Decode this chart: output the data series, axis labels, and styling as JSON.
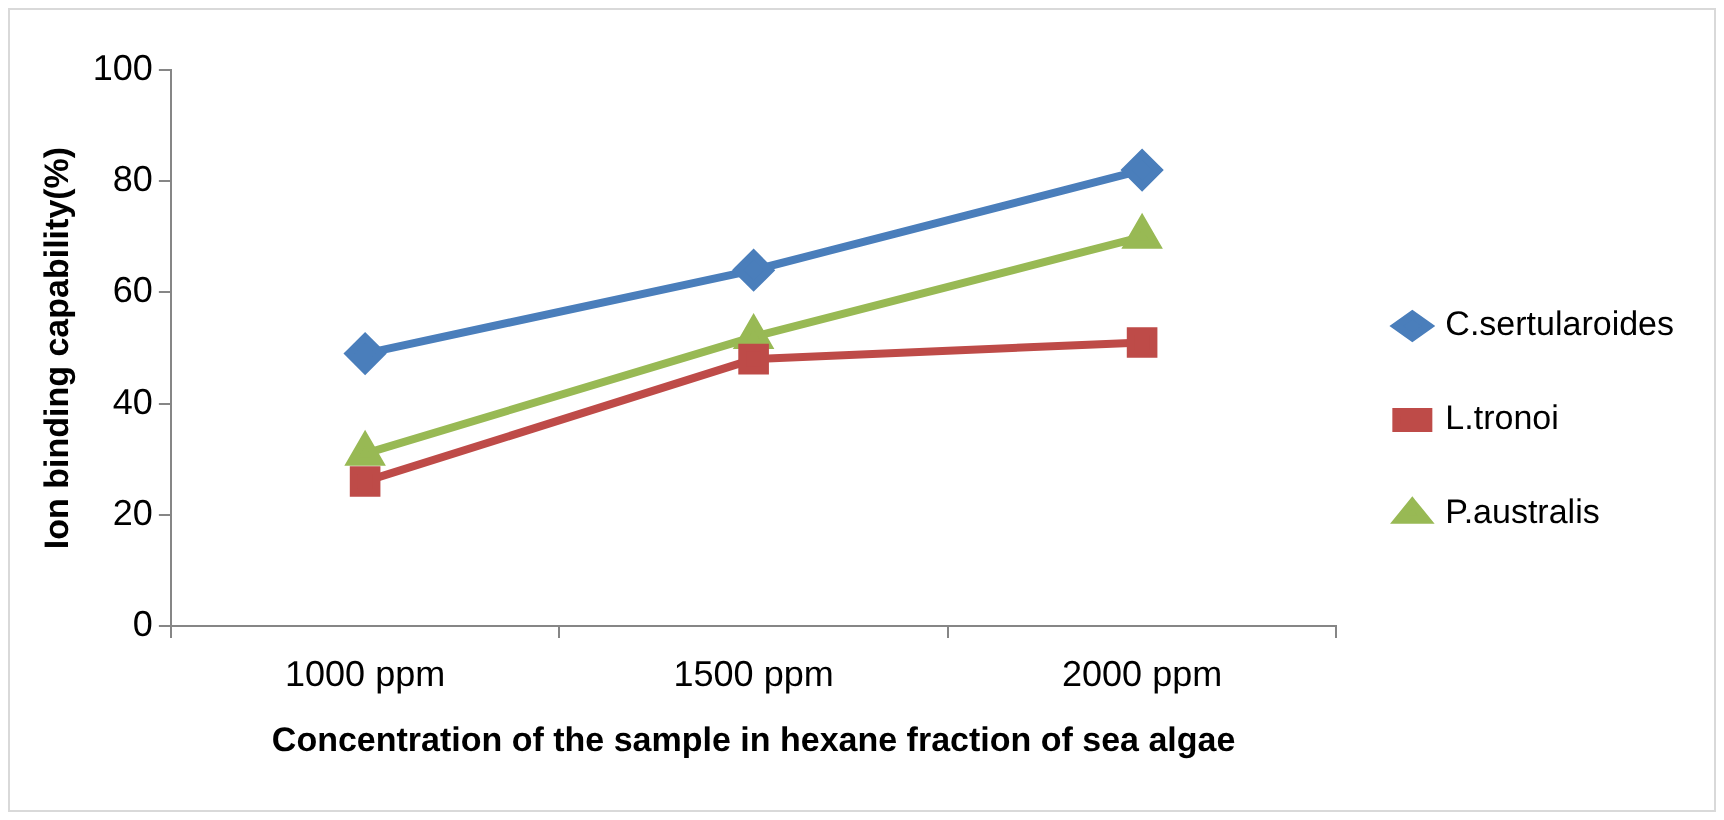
{
  "chart_data": {
    "type": "line",
    "xlabel": "Concentration of the sample in hexane fraction of sea algae",
    "ylabel": "Ion binding capability(%)",
    "categories": [
      "1000 ppm",
      "1500 ppm",
      "2000 ppm"
    ],
    "series": [
      {
        "name": "C.sertularoides",
        "color": "#4a7ebb",
        "marker": "diamond",
        "values": [
          49,
          64,
          82
        ]
      },
      {
        "name": "L.tronoi",
        "color": "#be4b48",
        "marker": "square",
        "values": [
          26,
          48,
          51
        ]
      },
      {
        "name": "P.australis",
        "color": "#98b954",
        "marker": "triangle",
        "values": [
          31,
          52,
          70
        ]
      }
    ],
    "ylim": [
      0,
      100
    ],
    "yticks": [
      0,
      20,
      40,
      60,
      80,
      100
    ],
    "grid": false,
    "legend": "right",
    "line_style": "solid"
  }
}
